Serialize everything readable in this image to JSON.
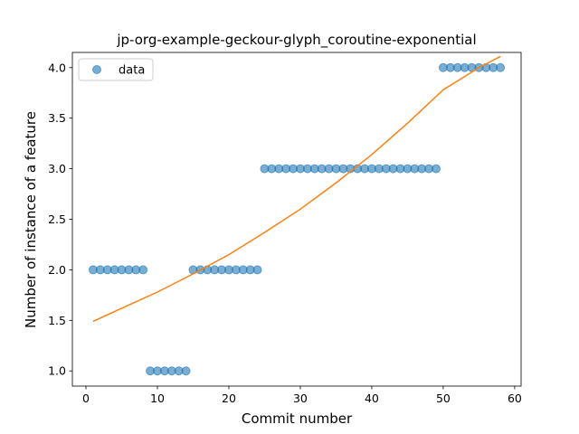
{
  "chart_data": {
    "type": "scatter",
    "title": "jp-org-example-geckour-glyph_coroutine-exponential",
    "xlabel": "Commit number",
    "ylabel": "Number of instance of a feature",
    "xlim": [
      -1.9,
      60.9
    ],
    "ylim": [
      0.85,
      4.15
    ],
    "xticks": [
      0,
      10,
      20,
      30,
      40,
      50,
      60
    ],
    "yticks": [
      1.0,
      1.5,
      2.0,
      2.5,
      3.0,
      3.5,
      4.0
    ],
    "xtick_labels": [
      "0",
      "10",
      "20",
      "30",
      "40",
      "50",
      "60"
    ],
    "ytick_labels": [
      "1.0",
      "1.5",
      "2.0",
      "2.5",
      "3.0",
      "3.5",
      "4.0"
    ],
    "grid": false,
    "legend_position": "upper-left",
    "legend": {
      "label": "data"
    },
    "series": [
      {
        "name": "data",
        "kind": "points",
        "color": "#1f77b4",
        "x": [
          1,
          2,
          3,
          4,
          5,
          6,
          7,
          8,
          9,
          10,
          11,
          12,
          13,
          14,
          15,
          16,
          17,
          18,
          19,
          20,
          21,
          22,
          23,
          24,
          25,
          26,
          27,
          28,
          29,
          30,
          31,
          32,
          33,
          34,
          35,
          36,
          37,
          38,
          39,
          40,
          41,
          42,
          43,
          44,
          45,
          46,
          47,
          48,
          49,
          50,
          51,
          52,
          53,
          54,
          55,
          56,
          57,
          58
        ],
        "y": [
          2,
          2,
          2,
          2,
          2,
          2,
          2,
          2,
          1,
          1,
          1,
          1,
          1,
          1,
          2,
          2,
          2,
          2,
          2,
          2,
          2,
          2,
          2,
          2,
          3,
          3,
          3,
          3,
          3,
          3,
          3,
          3,
          3,
          3,
          3,
          3,
          3,
          3,
          3,
          3,
          3,
          3,
          3,
          3,
          3,
          3,
          3,
          3,
          3,
          4,
          4,
          4,
          4,
          4,
          4,
          4,
          4,
          4
        ]
      },
      {
        "kind": "fit-curve",
        "color": "#ff7f0e",
        "x": [
          1,
          5,
          10,
          15,
          20,
          25,
          30,
          35,
          40,
          45,
          50,
          55,
          58
        ],
        "y": [
          1.49,
          1.62,
          1.78,
          1.96,
          2.15,
          2.37,
          2.6,
          2.86,
          3.14,
          3.45,
          3.78,
          4.0,
          4.11
        ]
      }
    ]
  }
}
